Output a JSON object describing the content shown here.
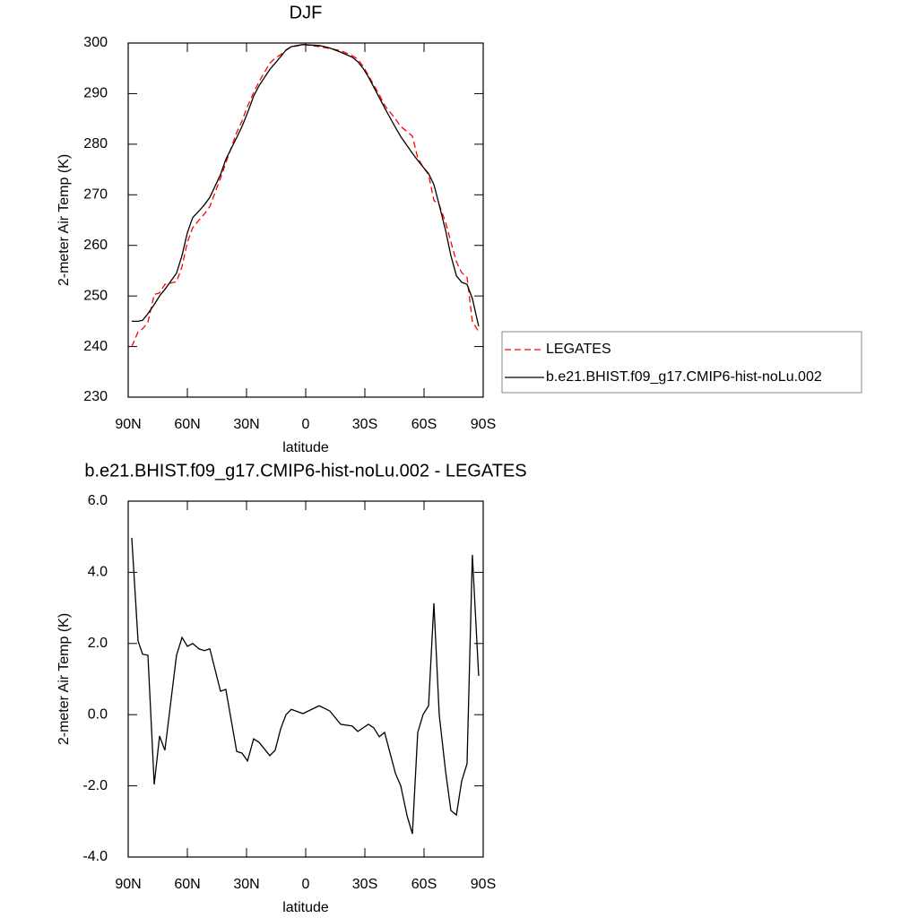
{
  "chart_data": [
    {
      "type": "line",
      "title": "DJF",
      "xlabel": "latitude",
      "ylabel": "2-meter Air Temp (K)",
      "x": [
        88.2,
        85,
        82.7,
        80,
        76.8,
        74.1,
        71.4,
        65.5,
        62.7,
        60,
        57.3,
        54.1,
        51.4,
        48.6,
        43.2,
        40.5,
        35,
        32.3,
        29.5,
        26.4,
        23.6,
        18.2,
        15.5,
        12.7,
        10,
        7.3,
        1.4,
        -6.8,
        -9.5,
        -12.3,
        -17.7,
        -23.6,
        -26.4,
        -29.1,
        -31.8,
        -34.5,
        -37.3,
        -40,
        -45.5,
        -48.2,
        -51.4,
        -54.1,
        -56.8,
        -59.5,
        -62.3,
        -65,
        -67.7,
        -70.9,
        -73.6,
        -76.4,
        -79.1,
        -81.8,
        -84.5,
        -87.7
      ],
      "series": [
        {
          "name": "LEGATES",
          "color": "#ff0000",
          "line_style": "dashed",
          "values": [
            240.0,
            242.9,
            243.5,
            244.8,
            250.3,
            250.6,
            252.3,
            252.8,
            255.8,
            260.6,
            263.5,
            265.0,
            266.2,
            267.7,
            273.3,
            276.3,
            282.3,
            284.6,
            287.5,
            290.2,
            292.4,
            296.0,
            297.0,
            297.7,
            298.6,
            299.2,
            299.7,
            299.3,
            299.1,
            298.9,
            298.5,
            297.5,
            296.8,
            295.4,
            293.6,
            291.7,
            289.8,
            287.7,
            285.0,
            283.5,
            282.5,
            281.6,
            277.3,
            275.5,
            274.0,
            268.9,
            268.0,
            264.6,
            260.7,
            256.8,
            254.6,
            253.7,
            245.0,
            242.9
          ]
        },
        {
          "name": "b.e21.BHIST.f09_g17.CMIP6-hist-noLu.002",
          "color": "#000000",
          "line_style": "solid",
          "values": [
            245,
            245,
            245.2,
            246.5,
            248.3,
            250,
            251.3,
            254.5,
            258,
            262.5,
            265.5,
            266.8,
            268,
            269.5,
            274,
            277,
            281.3,
            283.5,
            286.2,
            289.5,
            291.6,
            294.8,
            296,
            297.3,
            298.6,
            299.3,
            299.7,
            299.5,
            299.3,
            299,
            298.2,
            297.2,
            296.3,
            295,
            293.3,
            291.3,
            289.2,
            287.2,
            283.3,
            281.5,
            279.7,
            278.2,
            276.8,
            275.5,
            274.2,
            272,
            268,
            263,
            258,
            254,
            252.7,
            252.3,
            249.5,
            244
          ]
        }
      ],
      "xlim": [
        90,
        -90
      ],
      "xticks": [
        {
          "value": 90,
          "label": "90N"
        },
        {
          "value": 60,
          "label": "60N"
        },
        {
          "value": 30,
          "label": "30N"
        },
        0,
        {
          "value": -30,
          "label": "30S"
        },
        {
          "value": -60,
          "label": "60S"
        },
        {
          "value": -90,
          "label": "90S"
        }
      ],
      "ylim": [
        230,
        300
      ],
      "yticks": [
        230,
        240,
        250,
        260,
        270,
        280,
        290,
        300
      ],
      "legend": "right"
    },
    {
      "type": "line",
      "title": "b.e21.BHIST.f09_g17.CMIP6-hist-noLu.002 - LEGATES",
      "xlabel": "latitude",
      "ylabel": "2-meter Air Temp (K)",
      "x": [
        88.2,
        85,
        82.7,
        80,
        76.8,
        74.1,
        71.4,
        65.5,
        62.7,
        60,
        57.3,
        54.1,
        51.4,
        48.6,
        43.2,
        40.5,
        35,
        32.3,
        29.5,
        26.4,
        23.6,
        18.2,
        15.5,
        12.7,
        10,
        7.3,
        1.4,
        -6.8,
        -9.5,
        -12.3,
        -17.7,
        -23.6,
        -26.4,
        -29.1,
        -31.8,
        -34.5,
        -37.3,
        -40,
        -45.5,
        -48.2,
        -51.4,
        -54.1,
        -56.8,
        -59.5,
        -62.3,
        -65,
        -67.7,
        -70.9,
        -73.6,
        -76.4,
        -79.1,
        -81.8,
        -84.5,
        -87.7
      ],
      "values": [
        4.97,
        2.07,
        1.7,
        1.67,
        -1.96,
        -0.6,
        -1.0,
        1.67,
        2.17,
        1.92,
        2.0,
        1.85,
        1.8,
        1.85,
        0.66,
        0.71,
        -1.03,
        -1.08,
        -1.3,
        -0.68,
        -0.78,
        -1.15,
        -1.0,
        -0.4,
        0.0,
        0.15,
        0.03,
        0.25,
        0.18,
        0.1,
        -0.27,
        -0.32,
        -0.47,
        -0.37,
        -0.27,
        -0.37,
        -0.62,
        -0.5,
        -1.65,
        -2.0,
        -2.84,
        -3.35,
        -0.5,
        0.0,
        0.25,
        3.13,
        0.0,
        -1.58,
        -2.69,
        -2.82,
        -1.86,
        -1.38,
        4.49,
        1.09
      ],
      "color": "#000000",
      "xlim": [
        90,
        -90
      ],
      "xticks": [
        {
          "value": 90,
          "label": "90N"
        },
        {
          "value": 60,
          "label": "60N"
        },
        {
          "value": 30,
          "label": "30N"
        },
        0,
        {
          "value": -30,
          "label": "30S"
        },
        {
          "value": -60,
          "label": "60S"
        },
        {
          "value": -90,
          "label": "90S"
        }
      ],
      "ylim": [
        -4,
        6
      ],
      "yticks": [
        {
          "value": -4,
          "label": "-4.0"
        },
        {
          "value": -2,
          "label": "-2.0"
        },
        {
          "value": 0,
          "label": "0.0"
        },
        {
          "value": 2,
          "label": "2.0"
        },
        {
          "value": 4,
          "label": "4.0"
        },
        {
          "value": 6,
          "label": "6.0"
        }
      ]
    }
  ]
}
